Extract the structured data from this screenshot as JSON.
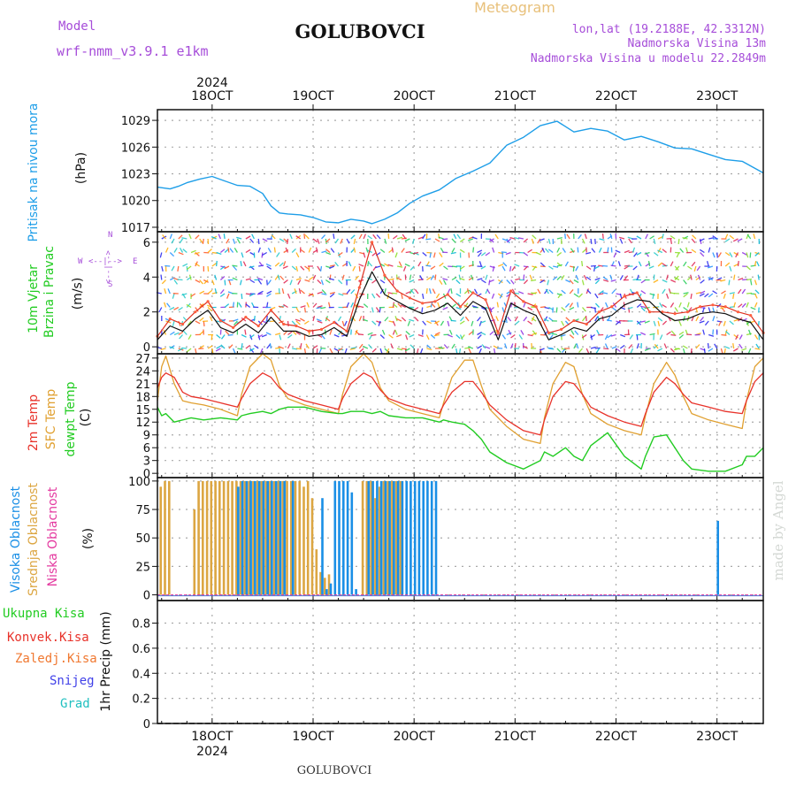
{
  "colors": {
    "purple": "#a64dd9",
    "gold": "#e8c07a",
    "pressure": "#1e9ee8",
    "red": "#e8322a",
    "orange": "#e0a030",
    "green": "#22cc22",
    "highcloud": "#1a8fe6",
    "midcloud": "#dca642",
    "lowcloud": "#e43aa0",
    "conv": "#e8322a",
    "frozen": "#f07830",
    "snow": "#4040e8",
    "grad": "#20c0c0",
    "grid": "#a9a9a9",
    "watermark": "#d4d8d4"
  },
  "header": {
    "model_label": "Model",
    "model_name": "wrf-nmm_v3.9.1  e1km",
    "station": "GOLUBOVCI",
    "title": "Meteogram",
    "lonlat": "lon,lat (19.2188E, 42.3312N)",
    "elevation": "Nadmorska Visina 13m",
    "model_elevation": "Nadmorska Visina u modelu 22.2849m"
  },
  "footer": {
    "station": "GOLUBOVCI",
    "watermark": "made by Angel"
  },
  "time_axis": {
    "year": "2024",
    "labels": [
      "18OCT",
      "19OCT",
      "20OCT",
      "21OCT",
      "22OCT",
      "23OCT"
    ],
    "label_hours": [
      12,
      36,
      60,
      84,
      108,
      132
    ],
    "range_hours": [
      -1,
      143
    ]
  },
  "panels": {
    "pressure": {
      "label": "Pritisak na nivou mora",
      "unit": "(hPa)",
      "ticks": [
        "1017",
        "1020",
        "1023",
        "1026",
        "1029"
      ]
    },
    "wind": {
      "label_line1": "10m Vjetar",
      "label_line2": "Brzina i Pravac",
      "unit": "(m/s)",
      "ticks": [
        "0",
        "2",
        "4",
        "6"
      ],
      "legend_w": "W",
      "legend_e": "E",
      "legend_n": "N",
      "legend_s": "S",
      "legend_arrow": "<--|-->"
    },
    "temp": {
      "label_2m": "2m Temp",
      "label_sfc": "SFC Temp",
      "label_dewpt": "dewpt Temp",
      "unit": "(C)",
      "ticks": [
        "0",
        "3",
        "6",
        "9",
        "12",
        "15",
        "18",
        "21",
        "24",
        "27"
      ]
    },
    "cloud": {
      "label_high": "Visoka Oblacnost",
      "label_mid": "Srednja Oblacnost",
      "label_low": "Niska Oblacnost",
      "unit": "(%)",
      "ticks": [
        "0",
        "25",
        "50",
        "75",
        "100"
      ]
    },
    "precip": {
      "legend": [
        "Ukupna Kisa",
        "Konvek.Kisa",
        "Zaledj.Kisa",
        "Snijeg",
        "Grad"
      ],
      "unit": "1hr Precip (mm)",
      "ticks": [
        "0",
        "0.2",
        "0.4",
        "0.6",
        "0.8"
      ]
    }
  },
  "chart_data": {
    "type": "line",
    "x_unit": "hours since 2024-10-17 12:00 UTC",
    "pressure_hpa": {
      "ylim": [
        1016.5,
        1030.2
      ],
      "x": [
        -1,
        2,
        4,
        6,
        9,
        12,
        15,
        18,
        21,
        24,
        26,
        28,
        30,
        33,
        36,
        39,
        42,
        45,
        48,
        50,
        53,
        56,
        59,
        62,
        66,
        70,
        74,
        78,
        82,
        86,
        90,
        94,
        98,
        102,
        106,
        110,
        114,
        118,
        122,
        126,
        130,
        134,
        138,
        143
      ],
      "y": [
        1021.5,
        1021.3,
        1021.6,
        1022.0,
        1022.4,
        1022.7,
        1022.2,
        1021.7,
        1021.6,
        1020.8,
        1019.4,
        1018.6,
        1018.5,
        1018.4,
        1018.1,
        1017.6,
        1017.5,
        1017.9,
        1017.7,
        1017.4,
        1017.9,
        1018.6,
        1019.7,
        1020.5,
        1021.2,
        1022.5,
        1023.3,
        1024.2,
        1026.2,
        1027.1,
        1028.4,
        1028.9,
        1027.7,
        1028.1,
        1027.8,
        1026.8,
        1027.2,
        1026.6,
        1025.9,
        1025.8,
        1025.2,
        1024.6,
        1024.4,
        1023.1
      ]
    },
    "wind_ms": {
      "ylim": [
        -0.4,
        6.6
      ],
      "speed_x": [
        -1,
        2,
        5,
        8,
        11,
        14,
        17,
        20,
        23,
        26,
        29,
        32,
        35,
        38,
        41,
        44,
        47,
        50,
        53,
        56,
        59,
        62,
        65,
        68,
        71,
        74,
        77,
        80,
        83,
        86,
        89,
        92,
        95,
        98,
        101,
        104,
        107,
        110,
        113,
        116,
        119,
        122,
        125,
        128,
        131,
        134,
        137,
        140,
        143
      ],
      "speed": [
        0.4,
        1.2,
        0.9,
        1.6,
        2.1,
        1.1,
        0.8,
        1.3,
        0.8,
        1.7,
        0.9,
        0.9,
        0.6,
        0.7,
        1.1,
        0.6,
        2.7,
        4.3,
        3.0,
        2.6,
        2.2,
        1.9,
        2.1,
        2.5,
        1.8,
        2.6,
        2.2,
        0.4,
        2.5,
        2.1,
        1.8,
        0.4,
        0.7,
        1.1,
        0.9,
        1.6,
        1.8,
        2.4,
        2.7,
        2.6,
        1.9,
        1.5,
        1.6,
        1.9,
        2.0,
        1.9,
        1.6,
        1.4,
        0.4
      ],
      "gust": [
        0.6,
        1.6,
        1.3,
        2.0,
        2.6,
        1.5,
        1.1,
        1.7,
        1.2,
        2.1,
        1.3,
        1.2,
        0.9,
        1.0,
        1.4,
        0.9,
        3.4,
        6.0,
        4.1,
        3.2,
        2.8,
        2.5,
        2.6,
        3.0,
        2.3,
        3.1,
        2.7,
        0.8,
        3.2,
        2.6,
        2.3,
        0.8,
        1.0,
        1.5,
        1.3,
        2.0,
        2.3,
        2.9,
        3.1,
        2.0,
        2.0,
        1.9,
        2.0,
        2.3,
        2.4,
        2.3,
        2.0,
        1.8,
        0.8
      ]
    },
    "temperature_c": {
      "ylim": [
        -1,
        28
      ],
      "x": [
        -1,
        0,
        1,
        3,
        5,
        7,
        10,
        14,
        18,
        19,
        21,
        24,
        26,
        28,
        30,
        34,
        38,
        42,
        43,
        45,
        48,
        50,
        52,
        54,
        58,
        62,
        66,
        67,
        69,
        72,
        74,
        76,
        78,
        82,
        86,
        90,
        91,
        93,
        96,
        98,
        100,
        102,
        106,
        110,
        114,
        115,
        117,
        120,
        122,
        124,
        126,
        130,
        134,
        138,
        139,
        141,
        143
      ],
      "t2m": [
        20.0,
        22.5,
        23.5,
        22.5,
        19.0,
        18.0,
        17.5,
        16.5,
        15.5,
        17.5,
        21.0,
        23.5,
        22.5,
        20.0,
        18.5,
        17.0,
        16.0,
        15.0,
        17.5,
        21.0,
        23.5,
        22.5,
        19.5,
        17.5,
        16.0,
        15.0,
        14.0,
        16.0,
        19.0,
        21.5,
        21.5,
        19.0,
        16.0,
        12.5,
        10.0,
        9.0,
        12.5,
        18.0,
        21.5,
        21.0,
        18.5,
        15.5,
        13.5,
        12.0,
        11.0,
        14.0,
        19.0,
        22.5,
        21.0,
        18.5,
        16.5,
        15.5,
        14.5,
        14.0,
        17.0,
        21.5,
        23.5
      ],
      "sfc": [
        17.0,
        25.0,
        27.5,
        21.0,
        17.0,
        16.5,
        16.0,
        15.0,
        13.5,
        18.5,
        25.0,
        28.0,
        26.5,
        20.5,
        17.5,
        16.0,
        15.0,
        14.0,
        18.5,
        25.0,
        28.0,
        26.0,
        20.0,
        17.0,
        15.0,
        14.0,
        13.0,
        16.5,
        22.5,
        26.5,
        26.5,
        20.5,
        15.0,
        11.0,
        8.0,
        7.0,
        13.0,
        21.0,
        26.0,
        25.0,
        18.5,
        14.0,
        11.5,
        10.0,
        9.0,
        13.5,
        21.0,
        26.0,
        23.0,
        18.0,
        14.0,
        12.5,
        11.5,
        10.5,
        17.0,
        25.0,
        27.0
      ],
      "dewpt": [
        15.5,
        13.5,
        14.0,
        12.0,
        12.5,
        13.0,
        12.5,
        13.0,
        12.5,
        13.5,
        14.0,
        14.5,
        14.0,
        15.0,
        15.5,
        15.5,
        14.5,
        14.0,
        14.0,
        14.5,
        14.5,
        14.0,
        14.5,
        13.5,
        13.0,
        13.0,
        12.0,
        12.5,
        12.0,
        11.5,
        10.0,
        8.0,
        5.0,
        2.5,
        1.0,
        3.0,
        5.0,
        4.0,
        6.0,
        4.0,
        3.0,
        6.5,
        9.5,
        4.0,
        1.0,
        4.0,
        8.5,
        9.0,
        6.0,
        3.0,
        1.0,
        0.5,
        0.5,
        2.0,
        4.0,
        4.0,
        6.0
      ]
    },
    "cloud_pct": {
      "ylim": [
        -5,
        103
      ],
      "mid_x": [
        0,
        1,
        2,
        8,
        9,
        10,
        11,
        12,
        13,
        14,
        15,
        16,
        17,
        18,
        19,
        20,
        21,
        22,
        23,
        24,
        25,
        26,
        27,
        28,
        29,
        30,
        31,
        32,
        33,
        34,
        35,
        36,
        37,
        38,
        39,
        40,
        48,
        49,
        50,
        51,
        52,
        53,
        54,
        55,
        56,
        57
      ],
      "mid": [
        95,
        100,
        100,
        75,
        100,
        100,
        100,
        100,
        100,
        100,
        100,
        100,
        100,
        100,
        100,
        100,
        100,
        100,
        100,
        100,
        100,
        100,
        100,
        100,
        100,
        100,
        100,
        100,
        100,
        95,
        100,
        85,
        40,
        20,
        15,
        18,
        100,
        100,
        100,
        85,
        95,
        100,
        100,
        100,
        100,
        100
      ],
      "high_x": [
        18,
        19,
        20,
        21,
        22,
        23,
        24,
        25,
        26,
        27,
        28,
        29,
        31,
        38,
        39,
        40,
        41,
        42,
        43,
        44,
        45,
        46,
        49,
        50,
        51,
        52,
        53,
        54,
        55,
        56,
        57,
        58,
        59,
        60,
        61,
        62,
        63,
        64,
        65,
        132
      ],
      "high": [
        95,
        100,
        100,
        100,
        100,
        100,
        100,
        100,
        100,
        100,
        100,
        100,
        100,
        85,
        5,
        10,
        100,
        100,
        100,
        100,
        90,
        5,
        100,
        100,
        100,
        100,
        100,
        100,
        100,
        100,
        100,
        100,
        100,
        100,
        100,
        100,
        100,
        100,
        100,
        65
      ],
      "low_x": [],
      "low": []
    },
    "precip_mm": {
      "ylim": [
        0,
        0.98
      ],
      "total": [],
      "convective": [],
      "frozen": [],
      "snow": [],
      "graupel": []
    }
  }
}
